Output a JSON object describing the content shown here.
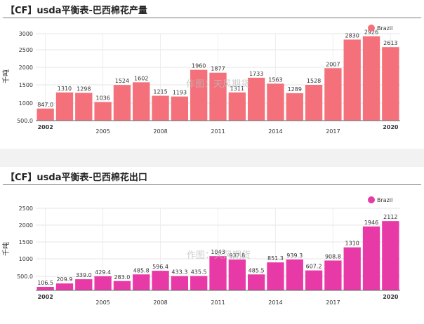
{
  "charts": [
    {
      "title": "【CF】usda平衡表-巴西棉花产量",
      "watermark": "作图：天风期货"
    },
    {
      "title": "【CF】usda平衡表-巴西棉花出口",
      "watermark": "作图：天风期货"
    }
  ],
  "chart_data": [
    {
      "type": "bar",
      "title": "【CF】usda平衡表-巴西棉花产量",
      "ylabel": "千吨",
      "xlabel": "",
      "ylim": [
        500,
        3000
      ],
      "yticks": [
        "3000",
        "2500",
        "2000",
        "1500",
        "1000",
        "500.0"
      ],
      "grid": true,
      "legend_position": "top-right",
      "categories": [
        "2002",
        "2003",
        "2004",
        "2005",
        "2006",
        "2007",
        "2008",
        "2009",
        "2010",
        "2011",
        "2012",
        "2013",
        "2014",
        "2015",
        "2016",
        "2017",
        "2018",
        "2019",
        "2020"
      ],
      "tick_labels": [
        "2002",
        "2005",
        "2008",
        "2011",
        "2014",
        "2017",
        "2020"
      ],
      "series": [
        {
          "name": "Brazil",
          "color": "#f4707a",
          "values": [
            847.0,
            1310,
            1298,
            1036,
            1524,
            1602,
            1215,
            1193,
            1960,
            1877,
            1311,
            1733,
            1563,
            1289,
            1528,
            2007,
            2830,
            2926,
            2613
          ],
          "labels": [
            "847.0",
            "1310",
            "1298",
            "1036",
            "1524",
            "1602",
            "1215",
            "1193",
            "1960",
            "1877",
            "1311",
            "1733",
            "1563",
            "1289",
            "1528",
            "2007",
            "2830",
            "2926",
            "2613"
          ]
        }
      ]
    },
    {
      "type": "bar",
      "title": "【CF】usda平衡表-巴西棉花出口",
      "ylabel": "千吨",
      "xlabel": "",
      "ylim": [
        0,
        2500
      ],
      "yticks": [
        "2500",
        "2000",
        "1500",
        "1000",
        "500.0"
      ],
      "grid": true,
      "legend_position": "top-right",
      "categories": [
        "2002",
        "2003",
        "2004",
        "2005",
        "2006",
        "2007",
        "2008",
        "2009",
        "2010",
        "2011",
        "2012",
        "2013",
        "2014",
        "2015",
        "2016",
        "2017",
        "2018",
        "2019",
        "2020"
      ],
      "tick_labels": [
        "2002",
        "2005",
        "2008",
        "2011",
        "2014",
        "2017",
        "2020"
      ],
      "series": [
        {
          "name": "Brazil",
          "color": "#e83aa6",
          "values": [
            106.5,
            209.9,
            339.0,
            429.4,
            283.0,
            485.8,
            596.4,
            433.3,
            435.5,
            1043,
            937.8,
            485.5,
            851.3,
            939.3,
            607.2,
            908.8,
            1310,
            1946,
            2112
          ],
          "labels": [
            "106.5",
            "209.9",
            "339.0",
            "429.4",
            "283.0",
            "485.8",
            "596.4",
            "433.3",
            "435.5",
            "1043",
            "937.8",
            "485.5",
            "851.3",
            "939.3",
            "607.2",
            "908.8",
            "1310",
            "1946",
            "2112"
          ]
        }
      ]
    }
  ]
}
